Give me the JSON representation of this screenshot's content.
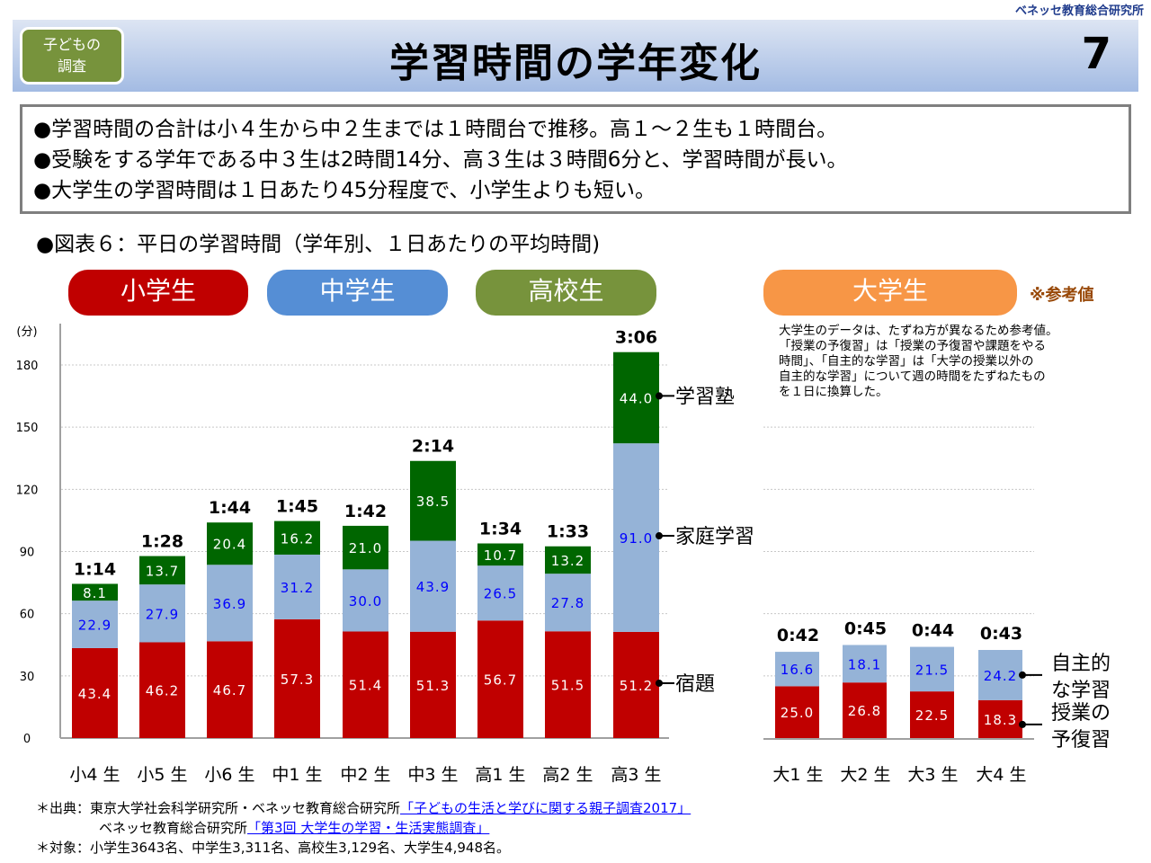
{
  "header": {
    "org": "ベネッセ教育総合研究所",
    "badge_line1": "子どもの",
    "badge_line2": "調査",
    "title": "学習時間の学年変化",
    "page_number": "7"
  },
  "summary": [
    "●学習時間の合計は小４生から中２生までは１時間台で推移。高１～２生も１時間台。",
    "●受験をする学年である中３生は2時間14分、高３生は３時間6分と、学習時間が長い。",
    "●大学生の学習時間は１日あたり45分程度で、小学生よりも短い。"
  ],
  "figure_title": "●図表６：平日の学習時間（学年別、１日あたりの平均時間)",
  "groups": [
    {
      "label": "小学生",
      "color": "#c00000"
    },
    {
      "label": "中学生",
      "color": "#558ed5"
    },
    {
      "label": "高校生",
      "color": "#77933c"
    },
    {
      "label": "大学生",
      "color": "#f79646"
    }
  ],
  "reference_mark": "※参考値",
  "university_note": [
    "大学生のデータは、たずね方が異なるため参考値。",
    "「授業の予復習」は「授業の予復習や課題をやる",
    "時間」、「自主的な学習」は「大学の授業以外の",
    "自主的な学習」について週の時間をたずねたもの",
    "を１日に換算した。"
  ],
  "chart_data": [
    {
      "type": "bar",
      "stacked": true,
      "title": "平日の学習時間（学年別、１日あたりの平均時間)",
      "ylabel": "(分)",
      "ylim": [
        0,
        180
      ],
      "yticks": [
        0,
        30,
        60,
        90,
        120,
        150,
        180
      ],
      "grid": true,
      "categories": [
        "小4 生",
        "小5 生",
        "小6 生",
        "中1 生",
        "中2 生",
        "中3 生",
        "高1 生",
        "高2 生",
        "高3 生"
      ],
      "totals": [
        "1:14",
        "1:28",
        "1:44",
        "1:45",
        "1:42",
        "2:14",
        "1:34",
        "1:33",
        "3:06"
      ],
      "series": [
        {
          "name": "宿題",
          "color": "#c00000",
          "label_color": "#ffffff",
          "values": [
            43.4,
            46.2,
            46.7,
            57.3,
            51.4,
            51.3,
            56.7,
            51.5,
            51.2
          ]
        },
        {
          "name": "家庭学習",
          "color": "#95b3d7",
          "label_color": "#0000ff",
          "values": [
            22.9,
            27.9,
            36.9,
            31.2,
            30.0,
            43.9,
            26.5,
            27.8,
            91.0
          ]
        },
        {
          "name": "学習塾",
          "color": "#006600",
          "label_color": "#ffffff",
          "values": [
            8.1,
            13.7,
            20.4,
            16.2,
            21.0,
            38.5,
            10.7,
            13.2,
            44.0
          ]
        }
      ],
      "legend_placement": "right (callouts)"
    },
    {
      "type": "bar",
      "stacked": true,
      "title": "大学生 ※参考値",
      "ylim": [
        0,
        180
      ],
      "grid": true,
      "categories": [
        "大1 生",
        "大2 生",
        "大3 生",
        "大4 生"
      ],
      "totals": [
        "0:42",
        "0:45",
        "0:44",
        "0:43"
      ],
      "series": [
        {
          "name": "授業の予復習",
          "color": "#c00000",
          "label_color": "#ffffff",
          "values": [
            25.0,
            26.8,
            22.5,
            18.3
          ]
        },
        {
          "name": "自主的な学習",
          "color": "#95b3d7",
          "label_color": "#0000ff",
          "values": [
            16.6,
            18.1,
            21.5,
            24.2
          ]
        }
      ],
      "legend_placement": "right (callouts)"
    }
  ],
  "callouts": {
    "main": [
      "学習塾",
      "家庭学習",
      "宿題"
    ],
    "univ_1a": "自主的",
    "univ_1b": "な学習",
    "univ_2a": "授業の",
    "univ_2b": "予復習"
  },
  "footer": {
    "source_label": "＊出典：東京大学社会科学研究所・ベネッセ教育総合研究所",
    "source_link1": "「子どもの生活と学びに関する親子調査2017」",
    "source_label2": "ベネッセ教育総合研究所",
    "source_link2": "「第3回 大学生の学習・生活実態調査」",
    "target": "＊対象：小学生3643名、中学生3,311名、高校生3,129名、大学生4,948名。"
  }
}
